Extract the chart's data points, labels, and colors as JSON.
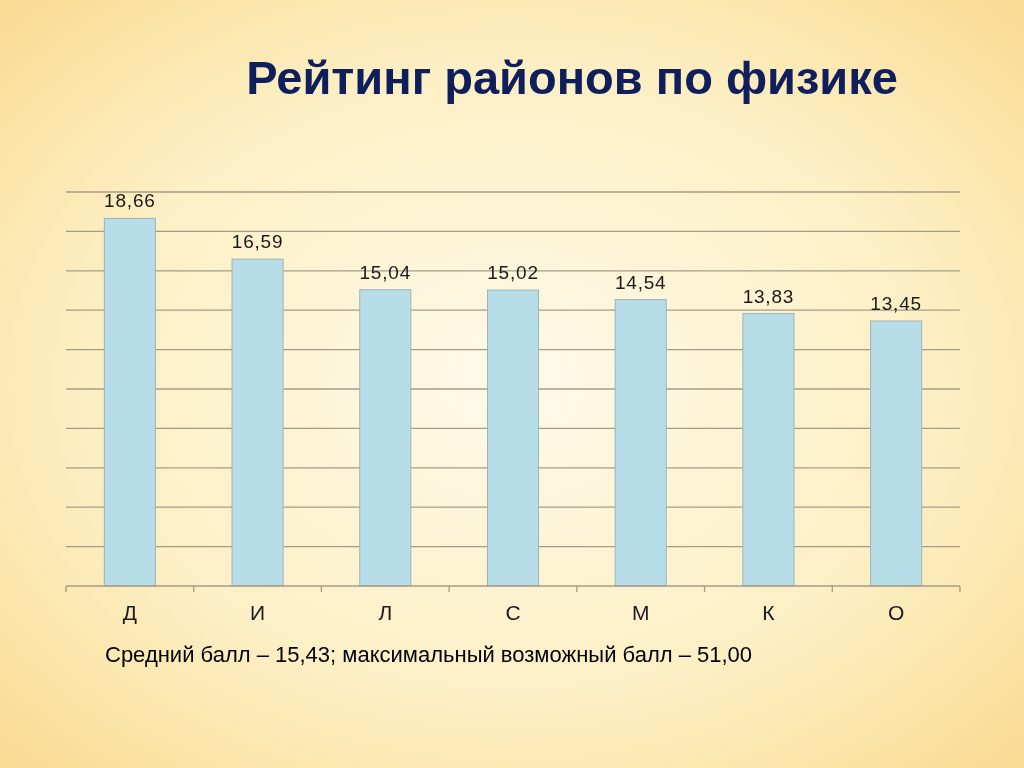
{
  "chart_data": {
    "type": "bar",
    "title": "Рейтинг районов по физике",
    "categories": [
      "Д",
      "И",
      "Л",
      "С",
      "М",
      "К",
      "О"
    ],
    "values": [
      18.66,
      16.59,
      15.04,
      15.02,
      14.54,
      13.83,
      13.45
    ],
    "value_labels": [
      "18,66",
      "16,59",
      "15,04",
      "15,02",
      "14,54",
      "13,83",
      "13,45"
    ],
    "color": "#b7dde8",
    "ylim": [
      0,
      20
    ],
    "yticks": [
      {
        "value": 0,
        "label": null
      },
      {
        "value": 2,
        "label": null
      },
      {
        "value": 4,
        "label": null
      },
      {
        "value": 6,
        "label": null
      },
      {
        "value": 8,
        "label": null
      },
      {
        "value": 10,
        "label": null
      },
      {
        "value": 12,
        "label": null
      },
      {
        "value": 14,
        "label": null
      },
      {
        "value": 16,
        "label": null
      },
      {
        "value": 18,
        "label": null
      },
      {
        "value": 20,
        "label": null
      }
    ],
    "grid": "y",
    "tick_labels": "x",
    "annotations": [
      "Средний балл – 15,43; максимальный возможный балл – 51,00"
    ]
  }
}
